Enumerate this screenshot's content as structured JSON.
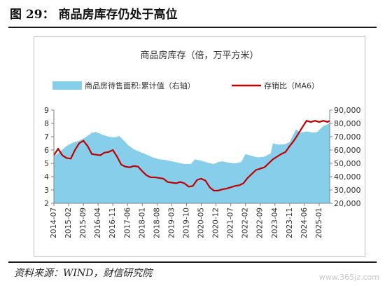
{
  "figure_title": "图 29：  商品房库存仍处于高位",
  "source_note": "资料来源：WIND，财信研究院",
  "watermark": "www.365jz.com",
  "colors": {
    "area": "#87CEEB",
    "line": "#C00000",
    "axis": "#808080",
    "text": "#333333"
  },
  "chart_data": {
    "type": "area+line",
    "title": "商品房库存（倍，万平方米）",
    "x_categories": [
      "2014-07",
      "2015-02",
      "2015-09",
      "2016-04",
      "2016-11",
      "2017-06",
      "2018-01",
      "2018-08",
      "2019-03",
      "2019-10",
      "2020-05",
      "2020-12",
      "2021-07",
      "2022-02",
      "2022-09",
      "2023-04",
      "2023-11",
      "2024-06",
      "2025-01"
    ],
    "x_range": [
      "2014-07",
      "2025-06"
    ],
    "y_left": {
      "min": 2,
      "max": 9,
      "ticks": [
        2,
        3,
        4,
        5,
        6,
        7,
        8,
        9
      ]
    },
    "y_right": {
      "min": 20000,
      "max": 90000,
      "ticks": [
        "20,000",
        "30,000",
        "40,000",
        "50,000",
        "60,000",
        "70,000",
        "80,000",
        "90,000"
      ]
    },
    "series": [
      {
        "name": "商品房待售面积:累计值（右轴）",
        "kind": "area",
        "axis": "right",
        "points": [
          [
            "2014-07",
            55000
          ],
          [
            "2014-10",
            59000
          ],
          [
            "2015-01",
            63000
          ],
          [
            "2015-04",
            65500
          ],
          [
            "2015-07",
            67000
          ],
          [
            "2015-10",
            69500
          ],
          [
            "2016-01",
            73000
          ],
          [
            "2016-03",
            73500
          ],
          [
            "2016-06",
            71500
          ],
          [
            "2016-09",
            70000
          ],
          [
            "2016-12",
            69500
          ],
          [
            "2017-02",
            70500
          ],
          [
            "2017-04",
            67500
          ],
          [
            "2017-06",
            64000
          ],
          [
            "2017-09",
            60500
          ],
          [
            "2017-12",
            58500
          ],
          [
            "2018-03",
            56500
          ],
          [
            "2018-06",
            54500
          ],
          [
            "2018-09",
            53000
          ],
          [
            "2018-12",
            52500
          ],
          [
            "2019-03",
            51500
          ],
          [
            "2019-06",
            50500
          ],
          [
            "2019-09",
            49500
          ],
          [
            "2019-12",
            49500
          ],
          [
            "2020-02",
            53000
          ],
          [
            "2020-05",
            52000
          ],
          [
            "2020-08",
            50500
          ],
          [
            "2020-11",
            49500
          ],
          [
            "2021-01",
            51000
          ],
          [
            "2021-03",
            51500
          ],
          [
            "2021-06",
            50500
          ],
          [
            "2021-09",
            50000
          ],
          [
            "2021-12",
            51000
          ],
          [
            "2022-02",
            57000
          ],
          [
            "2022-05",
            55500
          ],
          [
            "2022-08",
            54500
          ],
          [
            "2022-11",
            55000
          ],
          [
            "2023-02",
            57500
          ],
          [
            "2023-03",
            65000
          ],
          [
            "2023-06",
            64000
          ],
          [
            "2023-09",
            64500
          ],
          [
            "2023-11",
            66000
          ],
          [
            "2024-02",
            75500
          ],
          [
            "2024-04",
            73000
          ],
          [
            "2024-07",
            74000
          ],
          [
            "2024-10",
            73000
          ],
          [
            "2024-12",
            73500
          ],
          [
            "2025-03",
            78000
          ],
          [
            "2025-06",
            80000
          ]
        ]
      },
      {
        "name": "存销比（MA6）",
        "kind": "line",
        "axis": "left",
        "points": [
          [
            "2014-07",
            5.6
          ],
          [
            "2014-09",
            6.1
          ],
          [
            "2014-11",
            5.6
          ],
          [
            "2015-01",
            5.4
          ],
          [
            "2015-03",
            5.35
          ],
          [
            "2015-05",
            6.0
          ],
          [
            "2015-07",
            6.5
          ],
          [
            "2015-09",
            6.7
          ],
          [
            "2015-11",
            6.3
          ],
          [
            "2016-01",
            5.7
          ],
          [
            "2016-03",
            5.65
          ],
          [
            "2016-05",
            5.6
          ],
          [
            "2016-07",
            5.8
          ],
          [
            "2016-09",
            5.85
          ],
          [
            "2016-11",
            6.0
          ],
          [
            "2017-01",
            5.5
          ],
          [
            "2017-03",
            4.9
          ],
          [
            "2017-05",
            4.75
          ],
          [
            "2017-07",
            4.7
          ],
          [
            "2017-09",
            4.8
          ],
          [
            "2017-11",
            4.75
          ],
          [
            "2018-01",
            4.4
          ],
          [
            "2018-03",
            4.1
          ],
          [
            "2018-05",
            3.95
          ],
          [
            "2018-07",
            3.95
          ],
          [
            "2018-09",
            3.9
          ],
          [
            "2018-11",
            3.85
          ],
          [
            "2019-01",
            3.6
          ],
          [
            "2019-03",
            3.55
          ],
          [
            "2019-05",
            3.5
          ],
          [
            "2019-07",
            3.6
          ],
          [
            "2019-09",
            3.5
          ],
          [
            "2019-11",
            3.25
          ],
          [
            "2020-01",
            3.3
          ],
          [
            "2020-03",
            3.75
          ],
          [
            "2020-05",
            3.85
          ],
          [
            "2020-07",
            3.7
          ],
          [
            "2020-09",
            3.2
          ],
          [
            "2020-11",
            2.95
          ],
          [
            "2021-01",
            2.95
          ],
          [
            "2021-03",
            3.05
          ],
          [
            "2021-05",
            3.1
          ],
          [
            "2021-07",
            3.2
          ],
          [
            "2021-09",
            3.3
          ],
          [
            "2021-11",
            3.35
          ],
          [
            "2022-01",
            3.5
          ],
          [
            "2022-03",
            3.9
          ],
          [
            "2022-05",
            4.2
          ],
          [
            "2022-07",
            4.5
          ],
          [
            "2022-09",
            4.6
          ],
          [
            "2022-11",
            4.7
          ],
          [
            "2023-01",
            5.0
          ],
          [
            "2023-03",
            5.3
          ],
          [
            "2023-05",
            5.5
          ],
          [
            "2023-07",
            5.7
          ],
          [
            "2023-09",
            5.85
          ],
          [
            "2023-11",
            6.3
          ],
          [
            "2024-01",
            6.7
          ],
          [
            "2024-03",
            7.2
          ],
          [
            "2024-05",
            7.7
          ],
          [
            "2024-07",
            8.2
          ],
          [
            "2024-09",
            8.1
          ],
          [
            "2024-11",
            8.2
          ],
          [
            "2025-01",
            8.1
          ],
          [
            "2025-03",
            8.2
          ],
          [
            "2025-05",
            8.1
          ],
          [
            "2025-06",
            8.2
          ]
        ]
      }
    ],
    "legend_position": "top",
    "grid": false
  }
}
